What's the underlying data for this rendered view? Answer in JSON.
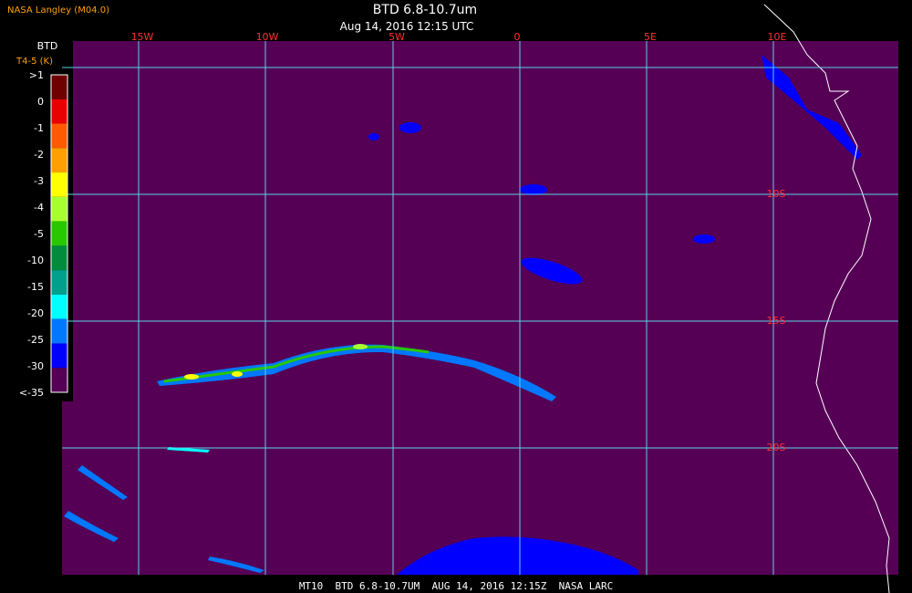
{
  "header": {
    "source": "NASA Langley (M04.0)",
    "title": "BTD 6.8-10.7um",
    "time": "Aug 14, 2016 12:15 UTC"
  },
  "legend": {
    "title": "BTD",
    "units": "T4-5 (K)",
    "labels": [
      ">1",
      "0",
      "-1",
      "-2",
      "-3",
      "-4",
      "-5",
      "-10",
      "-15",
      "-20",
      "-25",
      "-30",
      "<-35"
    ],
    "colors": [
      "#6e0000",
      "#e80000",
      "#ff5a00",
      "#ffa000",
      "#ffff00",
      "#a8ff30",
      "#28c800",
      "#008c3c",
      "#00a08c",
      "#00ffff",
      "#0078ff",
      "#0000ff",
      "#550055"
    ]
  },
  "map": {
    "longitude_labels": [
      "15W",
      "10W",
      "5W",
      "0",
      "5E",
      "10E"
    ],
    "latitude_labels": [
      "10S",
      "15S",
      "20S"
    ]
  },
  "footer": {
    "text": "MT10  BTD 6.8-10.7UM  AUG 14, 2016 12:15Z  NASA LARC"
  }
}
